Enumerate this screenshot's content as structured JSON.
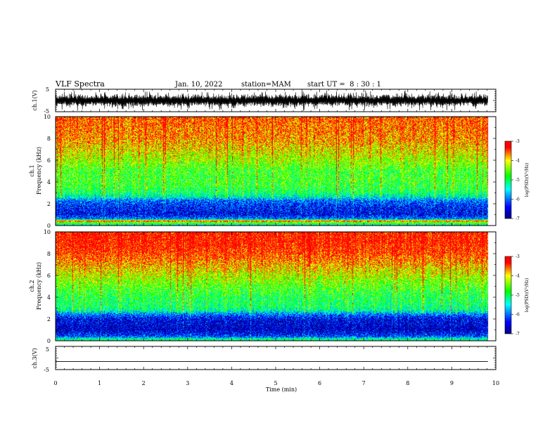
{
  "header": {
    "title": "VLF Spectra",
    "date": "Jan. 10, 2022",
    "station": "station=MAM",
    "start": "start UT =  8 : 30 : 1"
  },
  "chart_data": [
    {
      "type": "line",
      "panel": "ch1-waveform",
      "ylabel": "ch.1(V)",
      "ytick_labels": [
        "5",
        "-5"
      ],
      "ylim": [
        -5,
        5
      ],
      "xlim": [
        0,
        10
      ],
      "signal": "dense noise waveform spanning most of the range"
    },
    {
      "type": "heatmap",
      "panel": "ch1-spectrogram",
      "ylabel_line1": "ch.1",
      "ylabel_line2": "Frequency (kHz)",
      "ytick_labels": [
        "0",
        "2",
        "4",
        "6",
        "8",
        "10"
      ],
      "ylim": [
        0,
        10
      ],
      "xlim": [
        0,
        10
      ],
      "x_extent": [
        0,
        9.82
      ],
      "colorbar": {
        "label": "log(PSD)(V²/Hz)",
        "ticks": [
          "-3",
          "-4",
          "-5",
          "-6",
          "-7"
        ],
        "range": [
          -7,
          -3
        ]
      },
      "profile": {
        "freq_khz": [
          0.0,
          0.2,
          0.4,
          0.6,
          1.0,
          1.5,
          2.0,
          2.3,
          2.6,
          3.0,
          3.5,
          4.0,
          5.0,
          6.0,
          7.0,
          8.0,
          9.0,
          10.0
        ],
        "log_psd": [
          -5.3,
          -5.0,
          -3.4,
          -5.9,
          -6.5,
          -6.4,
          -6.2,
          -6.0,
          -5.4,
          -5.0,
          -4.8,
          -4.7,
          -4.7,
          -4.3,
          -4.0,
          -3.7,
          -3.6,
          -3.5
        ]
      }
    },
    {
      "type": "heatmap",
      "panel": "ch2-spectrogram",
      "ylabel_line1": "ch.2",
      "ylabel_line2": "Frequency (kHz)",
      "ytick_labels": [
        "0",
        "2",
        "4",
        "6",
        "8",
        "10"
      ],
      "ylim": [
        0,
        10
      ],
      "xlim": [
        0,
        10
      ],
      "x_extent": [
        0,
        9.82
      ],
      "colorbar": {
        "label": "log(PSD)(V²/Hz)",
        "ticks": [
          "-3",
          "-4",
          "-5",
          "-6",
          "-7"
        ],
        "range": [
          -7,
          -3
        ]
      },
      "profile": {
        "freq_khz": [
          0.0,
          0.2,
          0.4,
          1.0,
          1.5,
          2.0,
          2.4,
          2.8,
          3.2,
          4.0,
          5.0,
          6.0,
          7.0,
          8.0,
          9.0,
          10.0
        ],
        "log_psd": [
          -5.0,
          -5.3,
          -6.2,
          -6.7,
          -6.6,
          -6.5,
          -6.0,
          -5.2,
          -5.0,
          -4.9,
          -4.6,
          -4.2,
          -3.8,
          -3.4,
          -3.2,
          -3.2
        ]
      }
    },
    {
      "type": "line",
      "panel": "ch3-waveform",
      "ylabel": "ch.3(V)",
      "ytick_labels": [
        "5",
        "-5"
      ],
      "ylim": [
        -5,
        5
      ],
      "xlim": [
        0,
        10
      ],
      "x_extent": [
        0,
        9.82
      ],
      "values": [
        -1.5
      ],
      "xlabel": "Time (min)",
      "xtick_labels": [
        "0",
        "1",
        "2",
        "3",
        "4",
        "5",
        "6",
        "7",
        "8",
        "9",
        "10"
      ]
    }
  ],
  "colors": {
    "colormap": [
      "#000080",
      "#0000ff",
      "#00ffff",
      "#00ff00",
      "#ffff00",
      "#ff0000"
    ],
    "axis": "#000000"
  }
}
